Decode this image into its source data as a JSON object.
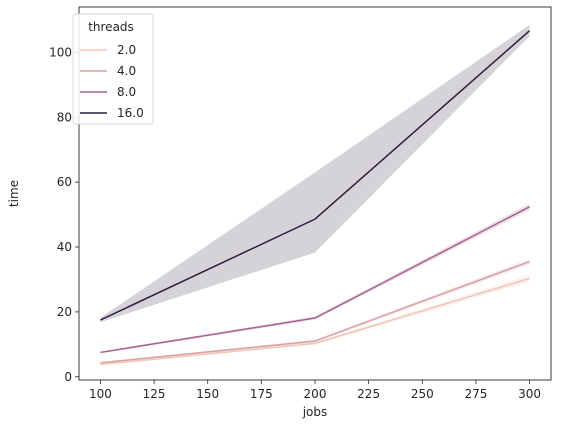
{
  "chart_data": {
    "type": "line",
    "title": "",
    "xlabel": "jobs",
    "ylabel": "time",
    "x": [
      100,
      200,
      300
    ],
    "xlim": [
      90,
      310
    ],
    "ylim": [
      -1,
      114
    ],
    "xticks": [
      100,
      125,
      150,
      175,
      200,
      225,
      250,
      275,
      300
    ],
    "yticks": [
      0,
      20,
      40,
      60,
      80,
      100
    ],
    "grid": false,
    "legend": {
      "title": "threads",
      "placement": "top-left"
    },
    "series": [
      {
        "name": "2.0",
        "color": "#f0c5b6",
        "values": [
          3.8,
          10.3,
          30.3
        ],
        "ci_lower": [
          3.5,
          9.9,
          29.2
        ],
        "ci_upper": [
          4.1,
          10.7,
          31.4
        ]
      },
      {
        "name": "4.0",
        "color": "#d89fa5",
        "values": [
          4.3,
          11.0,
          35.5
        ],
        "ci_lower": [
          4.0,
          10.6,
          34.6
        ],
        "ci_upper": [
          4.6,
          11.4,
          36.4
        ]
      },
      {
        "name": "8.0",
        "color": "#a7628e",
        "values": [
          7.5,
          18.1,
          52.4
        ],
        "ci_lower": [
          7.2,
          17.6,
          51.4
        ],
        "ci_upper": [
          7.8,
          18.6,
          53.4
        ]
      },
      {
        "name": "16.0",
        "color": "#2c1e3e",
        "values": [
          17.5,
          48.6,
          106.7
        ],
        "ci_lower": [
          16.8,
          38.3,
          105.0
        ],
        "ci_upper": [
          18.2,
          63.0,
          108.5
        ]
      }
    ]
  }
}
